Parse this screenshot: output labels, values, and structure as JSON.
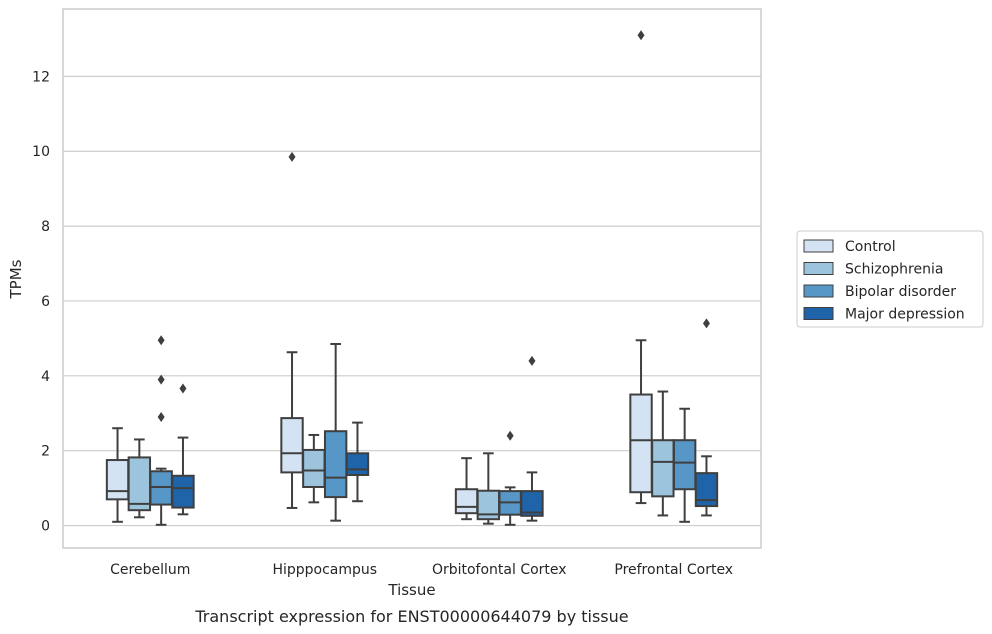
{
  "chart_data": {
    "type": "box",
    "title": "",
    "caption": "Transcript expression for ENST00000644079 by tissue",
    "xlabel": "Tissue",
    "ylabel": "TPMs",
    "ylim": [
      -0.6,
      13.8
    ],
    "yticks": [
      0,
      2,
      4,
      6,
      8,
      10,
      12
    ],
    "grid": "horizontal",
    "legend_position": "right",
    "categories": [
      "Cerebellum",
      "Hipppocampus",
      "Orbitofontal Cortex",
      "Prefrontal Cortex"
    ],
    "series": [
      {
        "name": "Control",
        "color": "#d4e3f3",
        "boxes": [
          {
            "whislo": 0.1,
            "q1": 0.7,
            "med": 0.92,
            "q3": 1.75,
            "whishi": 2.6,
            "fliers": []
          },
          {
            "whislo": 0.47,
            "q1": 1.42,
            "med": 1.93,
            "q3": 2.87,
            "whishi": 4.63,
            "fliers": [
              9.85
            ]
          },
          {
            "whislo": 0.17,
            "q1": 0.33,
            "med": 0.5,
            "q3": 0.97,
            "whishi": 1.8,
            "fliers": []
          },
          {
            "whislo": 0.6,
            "q1": 0.89,
            "med": 2.28,
            "q3": 3.5,
            "whishi": 4.95,
            "fliers": [
              13.1
            ]
          }
        ]
      },
      {
        "name": "Schizophrenia",
        "color": "#9cc4dd",
        "boxes": [
          {
            "whislo": 0.22,
            "q1": 0.41,
            "med": 0.58,
            "q3": 1.82,
            "whishi": 2.3,
            "fliers": []
          },
          {
            "whislo": 0.62,
            "q1": 1.03,
            "med": 1.47,
            "q3": 2.02,
            "whishi": 2.42,
            "fliers": []
          },
          {
            "whislo": 0.05,
            "q1": 0.17,
            "med": 0.3,
            "q3": 0.93,
            "whishi": 1.93,
            "fliers": []
          },
          {
            "whislo": 0.27,
            "q1": 0.78,
            "med": 1.7,
            "q3": 2.28,
            "whishi": 3.58,
            "fliers": []
          }
        ]
      },
      {
        "name": "Bipolar disorder",
        "color": "#5697c8",
        "boxes": [
          {
            "whislo": 0.02,
            "q1": 0.56,
            "med": 1.03,
            "q3": 1.45,
            "whishi": 1.52,
            "fliers": [
              4.95,
              3.9,
              2.9
            ]
          },
          {
            "whislo": 0.13,
            "q1": 0.76,
            "med": 1.28,
            "q3": 2.52,
            "whishi": 4.85,
            "fliers": []
          },
          {
            "whislo": 0.02,
            "q1": 0.29,
            "med": 0.62,
            "q3": 0.92,
            "whishi": 1.02,
            "fliers": [
              2.4
            ]
          },
          {
            "whislo": 0.1,
            "q1": 0.97,
            "med": 1.68,
            "q3": 2.28,
            "whishi": 3.12,
            "fliers": []
          }
        ]
      },
      {
        "name": "Major depression",
        "color": "#1f63a8",
        "boxes": [
          {
            "whislo": 0.3,
            "q1": 0.48,
            "med": 1.0,
            "q3": 1.33,
            "whishi": 2.35,
            "fliers": [
              3.66
            ]
          },
          {
            "whislo": 0.65,
            "q1": 1.35,
            "med": 1.5,
            "q3": 1.93,
            "whishi": 2.75,
            "fliers": []
          },
          {
            "whislo": 0.13,
            "q1": 0.26,
            "med": 0.35,
            "q3": 0.92,
            "whishi": 1.42,
            "fliers": [
              4.4
            ]
          },
          {
            "whislo": 0.27,
            "q1": 0.52,
            "med": 0.68,
            "q3": 1.4,
            "whishi": 1.85,
            "fliers": [
              5.4
            ]
          }
        ]
      }
    ]
  }
}
